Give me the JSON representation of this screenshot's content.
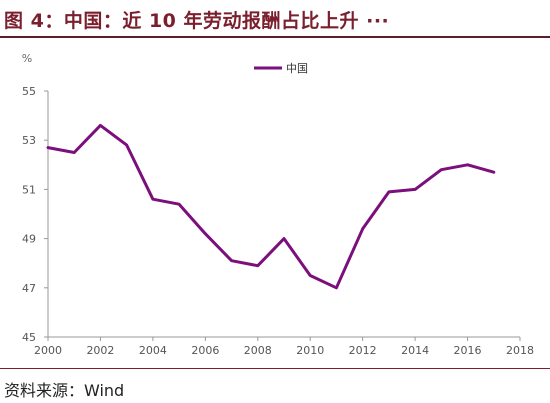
{
  "header": {
    "title": "图 4：中国：近 10 年劳动报酬占比上升 ···"
  },
  "footer": {
    "source": "资料来源：Wind"
  },
  "colors": {
    "title": "#7a1f2d",
    "series": "#7b0f7b",
    "axis": "#999999",
    "rule": "#5b1f2c"
  },
  "chart_data": {
    "type": "line",
    "title": "",
    "xlabel": "",
    "ylabel": "%",
    "xlim": [
      2000,
      2018
    ],
    "ylim": [
      45,
      55
    ],
    "x_ticks": [
      "2000",
      "2002",
      "2004",
      "2006",
      "2008",
      "2010",
      "2012",
      "2014",
      "2016",
      "2018"
    ],
    "y_ticks": [
      "45",
      "47",
      "49",
      "51",
      "53",
      "55"
    ],
    "grid": false,
    "legend_position": "top-center",
    "series": [
      {
        "name": "中国",
        "x": [
          2000,
          2001,
          2002,
          2003,
          2004,
          2005,
          2006,
          2007,
          2008,
          2009,
          2010,
          2011,
          2012,
          2013,
          2014,
          2015,
          2016,
          2017
        ],
        "values": [
          52.7,
          52.5,
          53.6,
          52.8,
          50.6,
          50.4,
          49.2,
          48.1,
          47.9,
          49.0,
          47.5,
          47.0,
          49.4,
          50.9,
          51.0,
          51.8,
          52.0,
          51.7
        ]
      }
    ]
  }
}
